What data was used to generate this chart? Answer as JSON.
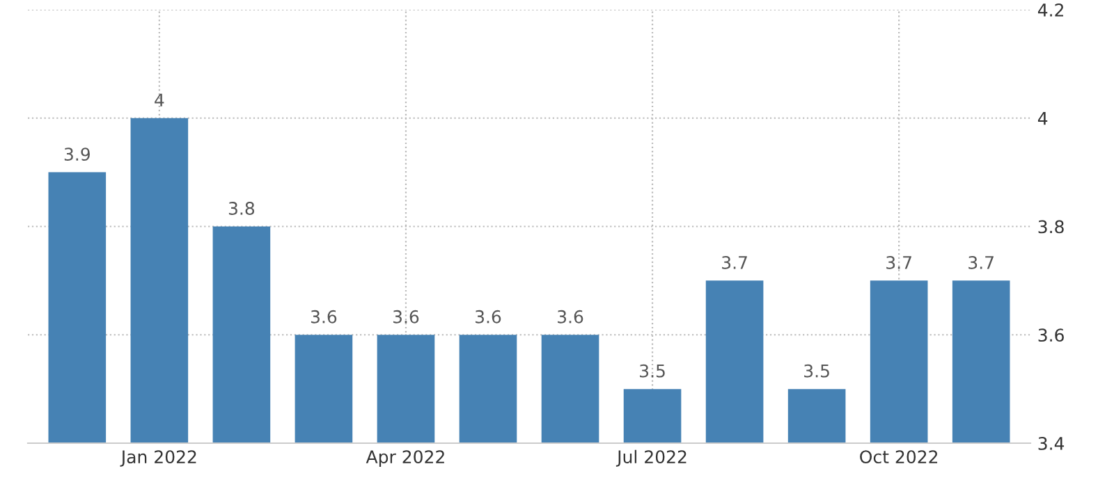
{
  "chart_data": {
    "type": "bar",
    "categories": [
      null,
      "Jan 2022",
      null,
      null,
      "Apr 2022",
      null,
      null,
      "Jul 2022",
      null,
      null,
      "Oct 2022",
      null
    ],
    "values": [
      3.9,
      4,
      3.8,
      3.6,
      3.6,
      3.6,
      3.6,
      3.5,
      3.7,
      3.5,
      3.7,
      3.7
    ],
    "color": "#4682b4",
    "ylim": [
      3.4,
      4.2
    ],
    "yticks": [
      3.4,
      3.6,
      3.8,
      4,
      4.2
    ],
    "grid": true,
    "data_labels": true
  }
}
